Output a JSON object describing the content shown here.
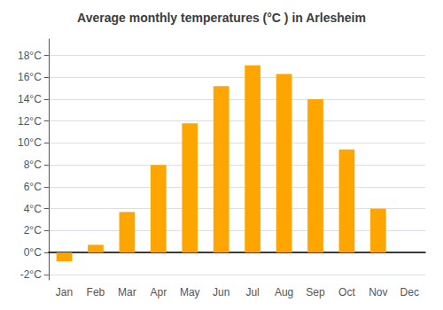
{
  "chart_data": {
    "type": "bar",
    "title": "Average monthly temperatures (°C ) in Arlesheim",
    "categories": [
      "Jan",
      "Feb",
      "Mar",
      "Apr",
      "May",
      "Jun",
      "Jul",
      "Aug",
      "Sep",
      "Oct",
      "Nov",
      "Dec"
    ],
    "values": [
      -0.8,
      0.7,
      3.7,
      8.0,
      11.8,
      15.2,
      17.1,
      16.3,
      14.0,
      9.4,
      4.0,
      0.0
    ],
    "color": "#FFA500",
    "ylim": [
      -2.5,
      19.5
    ],
    "yticks": [
      {
        "value": -2,
        "label": "-2°C"
      },
      {
        "value": 0,
        "label": "0°C"
      },
      {
        "value": 2,
        "label": "2°C"
      },
      {
        "value": 4,
        "label": "4°C"
      },
      {
        "value": 6,
        "label": "6°C"
      },
      {
        "value": 8,
        "label": "8°C"
      },
      {
        "value": 10,
        "label": "10°C"
      },
      {
        "value": 12,
        "label": "12°C"
      },
      {
        "value": 14,
        "label": "14°C"
      },
      {
        "value": 16,
        "label": "16°C"
      },
      {
        "value": 18,
        "label": "18°C"
      }
    ],
    "grid": true
  }
}
